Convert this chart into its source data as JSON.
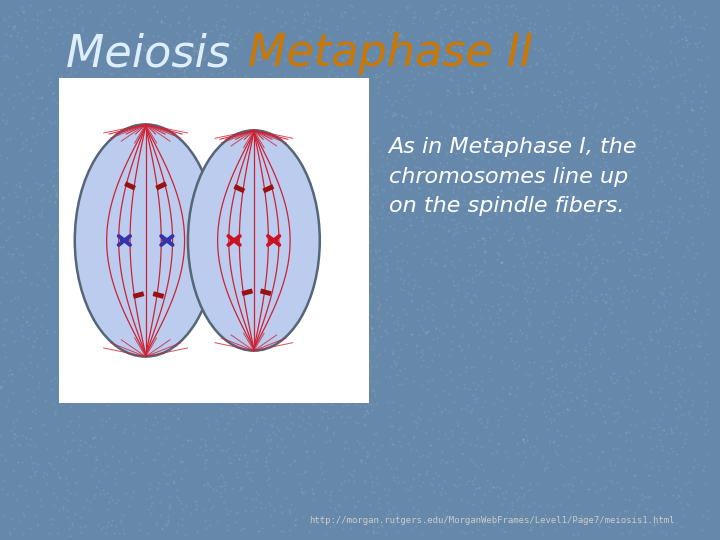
{
  "title_meiosis": "Meiosis ",
  "title_metaphase": "Metaphase II",
  "title_meiosis_color": "#ddeeff",
  "title_metaphase_color": "#cc7700",
  "title_fontsize": 32,
  "bg_color": "#6688aa",
  "text_body": "As in Metaphase I, the\nchromosomes line up\non the spindle fibers.",
  "text_color": "#ffffff",
  "text_fontsize": 16,
  "url_text": "http://morgan.rutgers.edu/MorganWebFrames/Level1/Page7/meiosis1.html",
  "url_color": "#cccccc",
  "url_fontsize": 6.5,
  "cell_bg": "#bbccee",
  "cell_border": "#556677",
  "white_box_color": "#ffffff",
  "spindle_color": "#cc2233",
  "chrom1_color": "#3333aa",
  "chrom2_color": "#cc1122",
  "kinetochore_color": "#991111"
}
